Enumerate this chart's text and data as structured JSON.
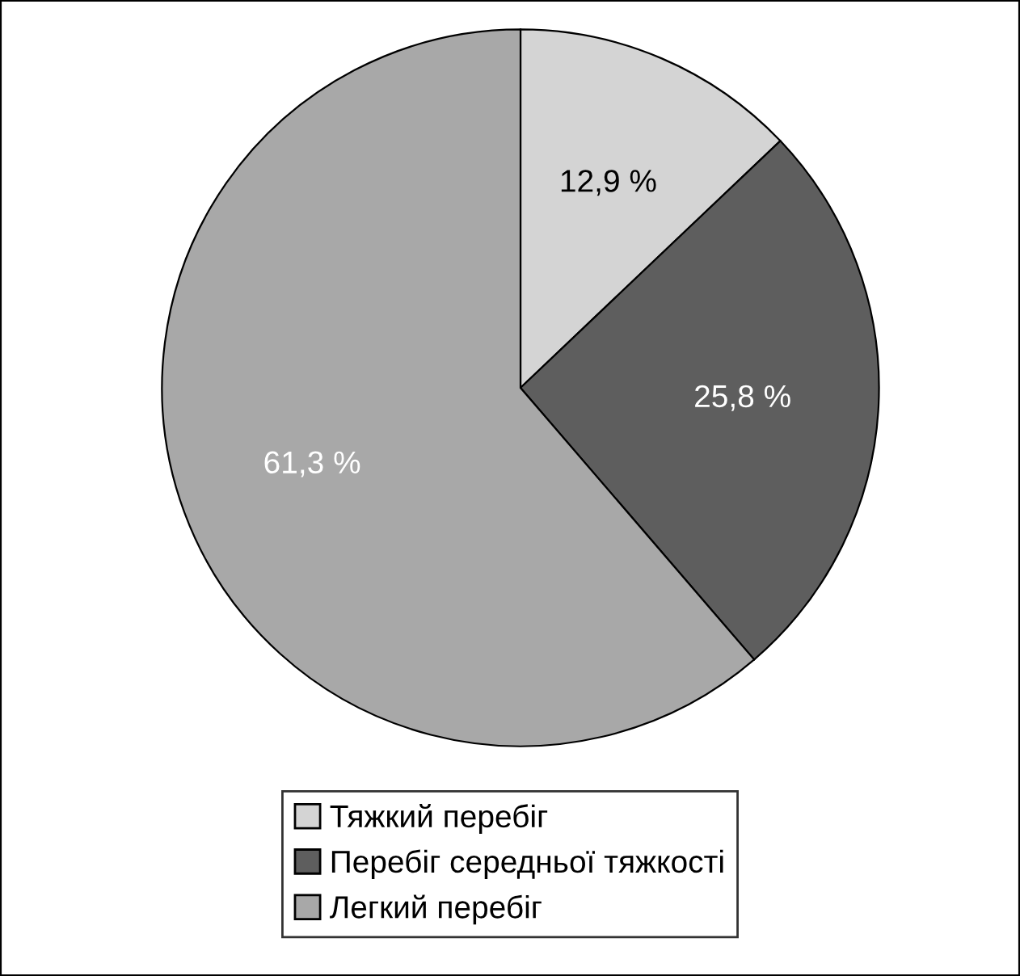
{
  "chart_data": {
    "type": "pie",
    "categories": [
      "Тяжкий перебіг",
      "Перебіг середньої тяжкості",
      "Легкий перебіг"
    ],
    "values": [
      12.9,
      25.8,
      61.3
    ],
    "value_labels": [
      "12,9 %",
      "25,8 %",
      "61,3 %"
    ],
    "colors": [
      "#d4d4d4",
      "#5e5e5e",
      "#a8a8a8"
    ],
    "legend": "bottom"
  }
}
